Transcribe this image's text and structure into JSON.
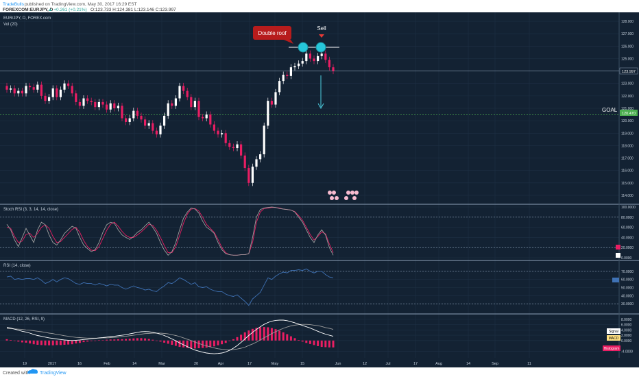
{
  "header": {
    "publisher": "TradeBulls",
    "published_text": "published on TradingView.com, May 30, 2017 16:29 EST",
    "symbol_line": "FOREXCOM:EURJPY, D",
    "change": "▲ +0.261 (+0.21%)",
    "ohlc": "O:123.733 H:124.381 L:123.146 C:123.997"
  },
  "main": {
    "legend_title": "EUR/JPY, D, FOREX.com",
    "volume_label": "Vol (20)",
    "annotation_double_roof": "Double roof",
    "annotation_sell": "Sell",
    "annotation_goal": "GOAL",
    "price_badge": "123.997",
    "goal_badge": "120.470"
  },
  "panes": {
    "stoch_title": "Stoch RSI (3, 3, 14, 14, close)",
    "rsi_title": "RSI (14, close)",
    "macd_title": "MACD (12, 26, RSI, 9)",
    "macd_legend": [
      "Signal",
      "MACD",
      "Histogram"
    ]
  },
  "footer": {
    "created_with": "Created with",
    "brand": "TradingView"
  },
  "colors": {
    "background": "#132233",
    "up_candle": "#ffffff",
    "down_candle": "#e91e63",
    "goal_line": "#4caf50",
    "arrow": "#4dd0e1",
    "callout": "#b71c1c",
    "stoch_k": "#9e9e9e",
    "stoch_d": "#e91e63",
    "rsi": "#3f72b5",
    "macd": "#ffffff",
    "signal": "#9e9e9e",
    "histogram": "#e91e63"
  },
  "chart_data": [
    {
      "type": "candlestick",
      "title": "EUR/JPY, D, FOREX.com",
      "x_ticks": [
        "19",
        "2017",
        "16",
        "Feb",
        "14",
        "Mar",
        "20",
        "Apr",
        "17",
        "May",
        "15",
        "Jun",
        "12",
        "Jul",
        "17",
        "Aug",
        "14",
        "Sep",
        "11"
      ],
      "ylim": [
        113.5,
        128.5
      ],
      "y_ticks": [
        114,
        115,
        116,
        117,
        118,
        119,
        120,
        121,
        122,
        123,
        124,
        125,
        126,
        127,
        128
      ],
      "goal_level": 120.47,
      "resistance_level": 125.85,
      "last_price": 123.997,
      "close": [
        122.5,
        122.6,
        122.2,
        122.4,
        122.2,
        122.8,
        122.7,
        122.5,
        122.9,
        122.0,
        121.6,
        121.9,
        122.6,
        121.9,
        122.5,
        123.0,
        122.8,
        122.2,
        121.5,
        121.2,
        121.8,
        121.6,
        121.5,
        121.1,
        121.5,
        121.3,
        120.9,
        121.4,
        121.0,
        121.2,
        120.2,
        119.9,
        120.2,
        120.8,
        120.4,
        120.1,
        119.6,
        119.8,
        119.2,
        118.9,
        119.6,
        120.4,
        121.4,
        121.2,
        121.8,
        122.8,
        122.4,
        121.9,
        121.1,
        121.6,
        120.3,
        120.2,
        120.5,
        119.7,
        119.2,
        118.9,
        119.0,
        118.2,
        117.9,
        117.8,
        118.1,
        117.2,
        116.2,
        115.0,
        116.3,
        116.9,
        117.3,
        119.6,
        121.6,
        121.3,
        122.3,
        123.2,
        123.7,
        123.6,
        124.3,
        124.4,
        124.6,
        124.8,
        125.4,
        125.0,
        124.8,
        125.2,
        125.4,
        124.9,
        124.3,
        124.0
      ],
      "stoch_rsi": {
        "ylim": [
          0,
          100
        ],
        "y_ticks": [
          0,
          20,
          40,
          60,
          80,
          100
        ],
        "k": [
          66,
          55,
          35,
          22,
          40,
          58,
          44,
          30,
          55,
          70,
          65,
          45,
          30,
          25,
          35,
          48,
          55,
          62,
          58,
          40,
          25,
          18,
          12,
          16,
          30,
          50,
          65,
          70,
          68,
          55,
          45,
          40,
          36,
          42,
          50,
          55,
          63,
          70,
          60,
          48,
          30,
          15,
          5,
          12,
          30,
          55,
          78,
          90,
          98,
          96,
          88,
          72,
          60,
          55,
          48,
          30,
          16,
          8,
          6,
          5,
          5,
          6,
          6,
          8,
          40,
          80,
          95,
          98,
          99,
          100,
          99,
          97,
          96,
          95,
          94,
          90,
          80,
          70,
          55,
          40,
          30,
          45,
          55,
          45,
          20,
          5
        ],
        "d": [
          60,
          58,
          42,
          30,
          33,
          46,
          48,
          40,
          48,
          60,
          65,
          58,
          42,
          30,
          32,
          40,
          48,
          56,
          60,
          50,
          34,
          22,
          15,
          14,
          22,
          38,
          54,
          66,
          70,
          62,
          52,
          44,
          40,
          40,
          45,
          51,
          58,
          66,
          64,
          54,
          40,
          24,
          10,
          10,
          22,
          44,
          68,
          86,
          96,
          97,
          92,
          80,
          66,
          58,
          50,
          36,
          20,
          10,
          6,
          5,
          5,
          6,
          6,
          8,
          30,
          70,
          90,
          97,
          98,
          99,
          99,
          98,
          96,
          95,
          94,
          91,
          83,
          74,
          60,
          46,
          35,
          42,
          51,
          47,
          27,
          10
        ]
      },
      "rsi": {
        "ylim": [
          20,
          80
        ],
        "y_ticks": [
          30,
          40,
          50,
          60,
          70
        ],
        "levels": [
          70,
          30
        ],
        "values": [
          63,
          64,
          60,
          61,
          60,
          61,
          61,
          60,
          62,
          59,
          55,
          57,
          60,
          57,
          60,
          62,
          61,
          58,
          55,
          54,
          56,
          55,
          55,
          53,
          55,
          54,
          52,
          54,
          53,
          53,
          50,
          48,
          50,
          52,
          50,
          49,
          47,
          48,
          46,
          45,
          49,
          52,
          56,
          55,
          58,
          62,
          60,
          57,
          54,
          56,
          51,
          50,
          51,
          48,
          46,
          45,
          45,
          42,
          40,
          39,
          41,
          37,
          33,
          28,
          36,
          40,
          44,
          53,
          62,
          60,
          64,
          67,
          69,
          68,
          71,
          71,
          72,
          71,
          73,
          70,
          68,
          70,
          70,
          66,
          63,
          62
        ]
      },
      "macd": {
        "ylim": [
          -6,
          9
        ],
        "y_ticks": [
          -4,
          0,
          2,
          4,
          6,
          8
        ],
        "macd": [
          5.0,
          4.7,
          4.3,
          3.9,
          3.5,
          3.2,
          2.8,
          2.3,
          1.9,
          1.6,
          1.3,
          1.0,
          0.8,
          0.6,
          0.4,
          0.2,
          0.1,
          0.0,
          0.1,
          0.2,
          0.4,
          0.5,
          0.7,
          0.8,
          1.0,
          1.1,
          1.3,
          1.5,
          1.6,
          1.8,
          2.0,
          2.2,
          2.5,
          2.8,
          3.1,
          3.3,
          3.4,
          3.3,
          3.1,
          2.8,
          2.4,
          1.9,
          1.3,
          0.6,
          -0.1,
          -0.9,
          -1.6,
          -2.3,
          -3.0,
          -3.6,
          -4.0,
          -4.4,
          -4.7,
          -4.9,
          -5.0,
          -4.9,
          -4.7,
          -4.3,
          -3.7,
          -2.9,
          -1.9,
          -0.7,
          0.6,
          1.9,
          3.1,
          4.2,
          5.2,
          6.1,
          6.8,
          7.3,
          7.6,
          7.7,
          7.7,
          7.5,
          7.1,
          6.7,
          6.2,
          5.7,
          5.2,
          4.7,
          4.1,
          3.5,
          2.9,
          2.4,
          2.0,
          1.6
        ],
        "signal": [
          4.5,
          4.5,
          4.4,
          4.3,
          4.2,
          4.0,
          3.9,
          3.7,
          3.5,
          3.3,
          3.1,
          2.8,
          2.6,
          2.3,
          2.1,
          1.8,
          1.6,
          1.4,
          1.2,
          1.1,
          1.0,
          0.9,
          0.9,
          0.9,
          0.9,
          1.0,
          1.0,
          1.1,
          1.2,
          1.3,
          1.5,
          1.6,
          1.8,
          2.0,
          2.2,
          2.4,
          2.6,
          2.7,
          2.8,
          2.8,
          2.8,
          2.7,
          2.5,
          2.2,
          1.9,
          1.5,
          1.0,
          0.5,
          0.0,
          -0.6,
          -1.1,
          -1.6,
          -2.0,
          -2.4,
          -2.8,
          -3.1,
          -3.3,
          -3.4,
          -3.5,
          -3.4,
          -3.2,
          -2.9,
          -2.5,
          -1.9,
          -1.3,
          -0.6,
          0.2,
          1.0,
          1.8,
          2.6,
          3.3,
          4.0,
          4.6,
          5.1,
          5.5,
          5.8,
          6.0,
          6.1,
          6.1,
          6.0,
          5.8,
          5.6,
          5.3,
          4.9,
          4.6,
          4.2
        ]
      }
    }
  ]
}
